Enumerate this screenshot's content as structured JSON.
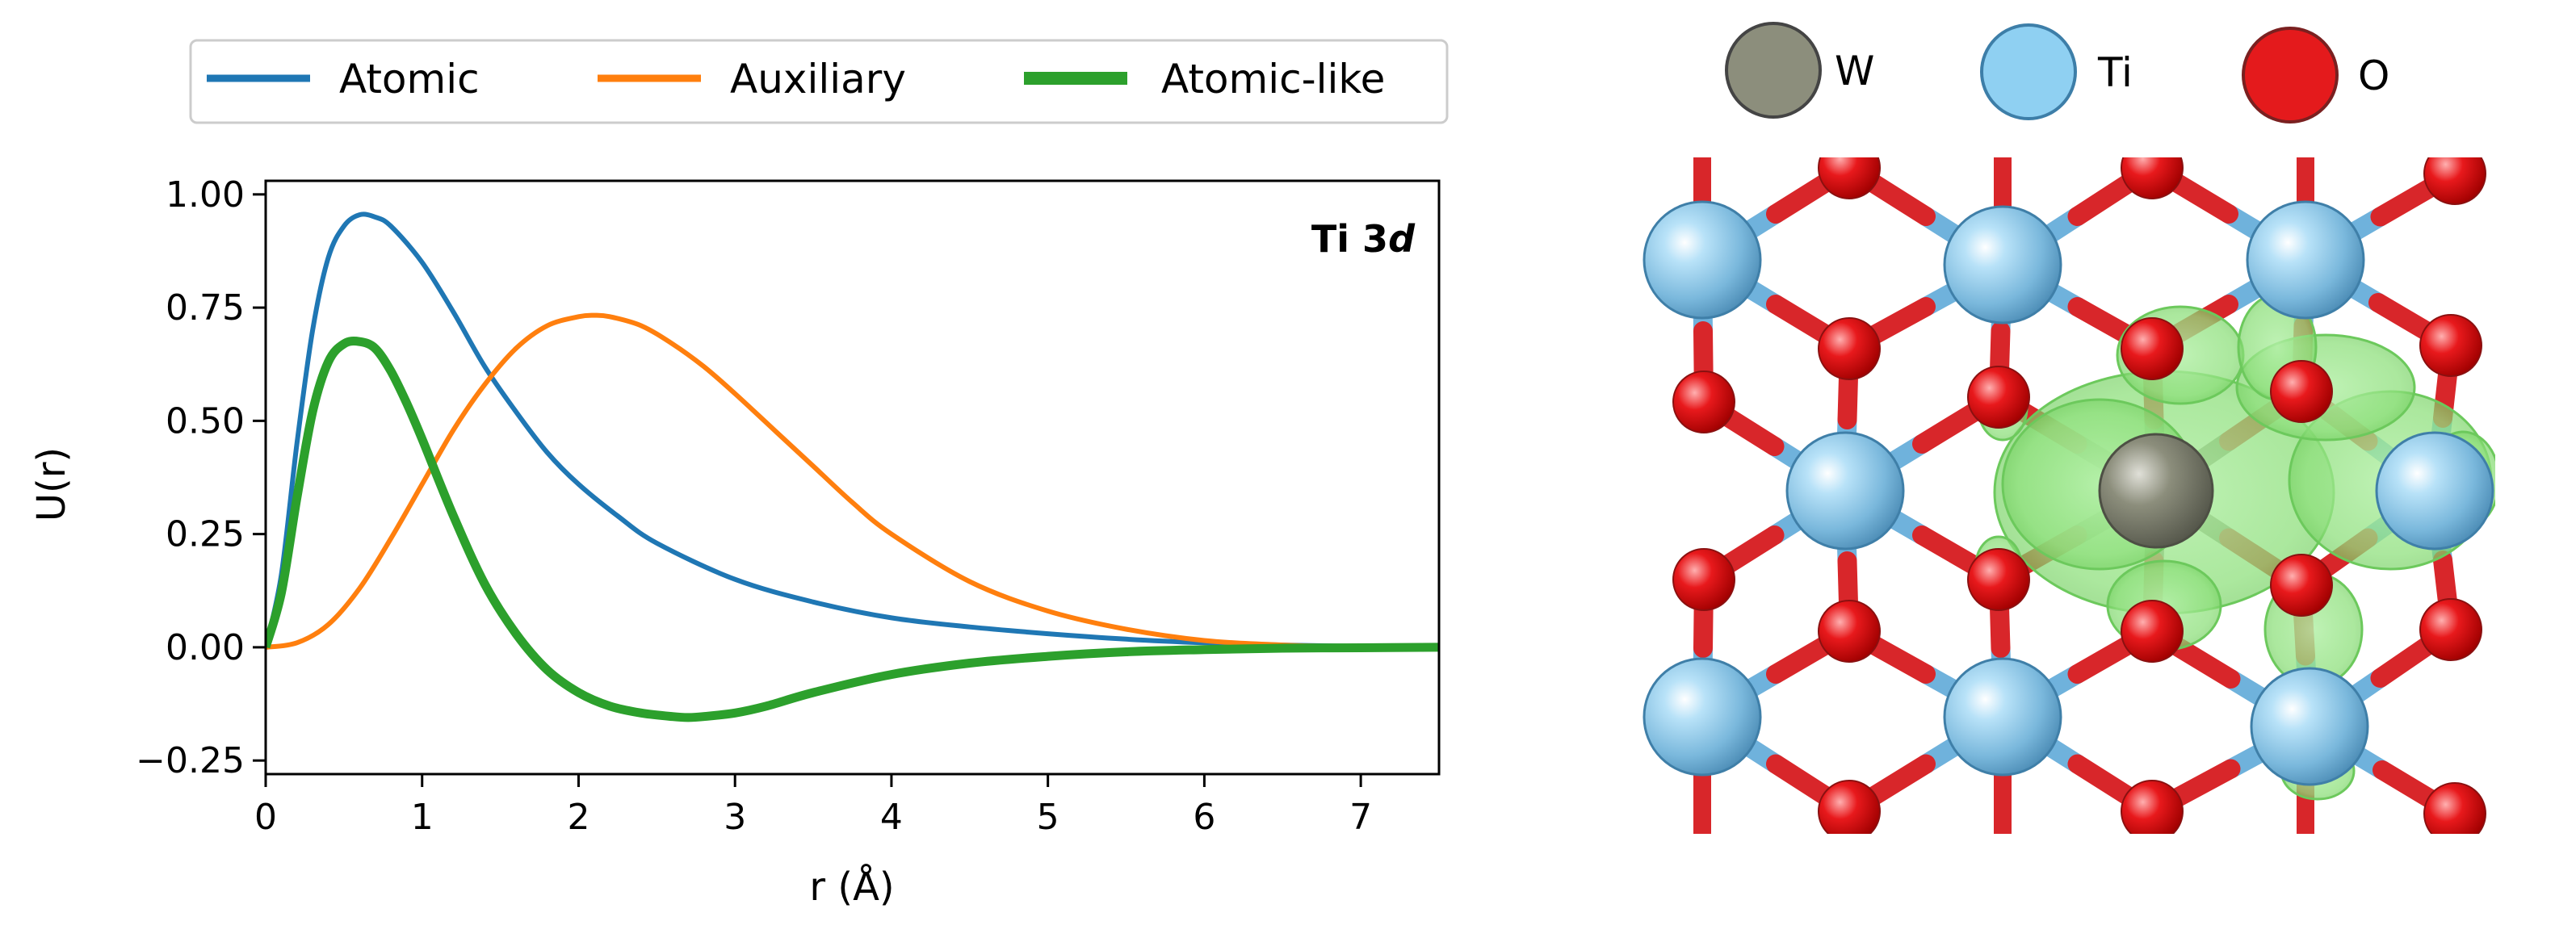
{
  "chart_data": {
    "type": "line",
    "title": "",
    "xlabel": "r (Å)",
    "ylabel": "U(r)",
    "xlim": [
      0,
      7.5
    ],
    "ylim": [
      -0.28,
      1.03
    ],
    "xticks": [
      0,
      1,
      2,
      3,
      4,
      5,
      6,
      7
    ],
    "yticks": [
      -0.25,
      0.0,
      0.25,
      0.5,
      0.75,
      1.0
    ],
    "ytick_labels": [
      "−0.25",
      "0.00",
      "0.25",
      "0.50",
      "0.75",
      "1.00"
    ],
    "annotation": {
      "text_plain": "Ti 3",
      "text_italic": "d",
      "position": "top-right"
    },
    "legend": {
      "placement": "top-outside",
      "entries": [
        "Atomic",
        "Auxiliary",
        "Atomic-like"
      ]
    },
    "grid": false,
    "series": [
      {
        "name": "Atomic",
        "color": "#1f77b4",
        "x": [
          0,
          0.1,
          0.2,
          0.3,
          0.4,
          0.5,
          0.6,
          0.7,
          0.8,
          1.0,
          1.2,
          1.4,
          1.6,
          1.8,
          2.0,
          2.25,
          2.5,
          3.0,
          3.5,
          4.0,
          4.5,
          5.0,
          5.5,
          6.0,
          6.5,
          7.0,
          7.5
        ],
        "y": [
          0,
          0.16,
          0.45,
          0.7,
          0.86,
          0.93,
          0.955,
          0.95,
          0.93,
          0.85,
          0.74,
          0.62,
          0.52,
          0.43,
          0.36,
          0.29,
          0.23,
          0.15,
          0.1,
          0.065,
          0.045,
          0.03,
          0.018,
          0.01,
          0.005,
          0.002,
          0.0
        ]
      },
      {
        "name": "Auxiliary",
        "color": "#ff7f0e",
        "x": [
          0,
          0.2,
          0.4,
          0.6,
          0.8,
          1.0,
          1.2,
          1.4,
          1.6,
          1.8,
          2.0,
          2.1,
          2.2,
          2.4,
          2.6,
          2.8,
          3.0,
          3.25,
          3.5,
          3.75,
          4.0,
          4.5,
          5.0,
          5.5,
          6.0,
          6.5,
          7.0,
          7.5
        ],
        "y": [
          0,
          0.01,
          0.05,
          0.13,
          0.24,
          0.36,
          0.48,
          0.58,
          0.66,
          0.71,
          0.73,
          0.733,
          0.73,
          0.71,
          0.67,
          0.62,
          0.56,
          0.48,
          0.4,
          0.32,
          0.25,
          0.145,
          0.08,
          0.04,
          0.015,
          0.005,
          0.001,
          0.0
        ]
      },
      {
        "name": "Atomic-like",
        "color": "#2ca02c",
        "x": [
          0,
          0.1,
          0.2,
          0.3,
          0.4,
          0.5,
          0.6,
          0.7,
          0.8,
          0.9,
          1.0,
          1.2,
          1.4,
          1.6,
          1.8,
          2.0,
          2.2,
          2.4,
          2.6,
          2.7,
          2.8,
          3.0,
          3.2,
          3.5,
          4.0,
          4.5,
          5.0,
          5.5,
          6.0,
          6.5,
          7.0,
          7.5
        ],
        "y": [
          0,
          0.12,
          0.33,
          0.52,
          0.63,
          0.67,
          0.675,
          0.66,
          0.61,
          0.54,
          0.46,
          0.29,
          0.14,
          0.03,
          -0.05,
          -0.1,
          -0.13,
          -0.145,
          -0.153,
          -0.155,
          -0.153,
          -0.145,
          -0.13,
          -0.1,
          -0.06,
          -0.035,
          -0.02,
          -0.01,
          -0.005,
          -0.002,
          -0.001,
          0.0
        ]
      }
    ]
  },
  "structure_figure": {
    "legend": [
      {
        "symbol": "W",
        "color": "#8c8e7c"
      },
      {
        "symbol": "Ti",
        "color": "#8fd0f2"
      },
      {
        "symbol": "O",
        "color": "#e41a1c"
      }
    ]
  }
}
